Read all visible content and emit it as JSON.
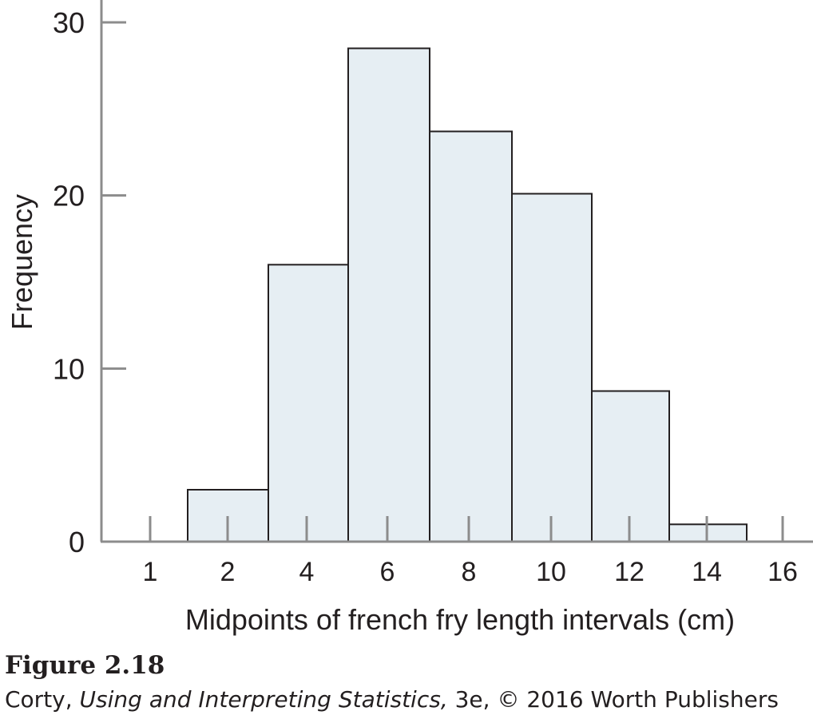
{
  "chart_data": {
    "type": "bar",
    "subtype": "histogram",
    "title": "",
    "xlabel": "Midpoints of french fry length intervals (cm)",
    "ylabel": "Frequency",
    "ylim": [
      0,
      30
    ],
    "yticks": [
      "0",
      "10",
      "20",
      "30"
    ],
    "xtick_labels": [
      "1",
      "2",
      "4",
      "6",
      "8",
      "10",
      "12",
      "14",
      "16"
    ],
    "categories": [
      "2",
      "4",
      "6",
      "8",
      "10",
      "12",
      "14"
    ],
    "values": [
      3,
      16,
      28.5,
      23.7,
      20.1,
      8.7,
      1
    ],
    "grid": false,
    "bar_fill": "#e6eef3",
    "bar_stroke": "#231f20",
    "axis_color": "#8c8c8c"
  },
  "caption": {
    "figure": "Figure 2.18",
    "author": "Corty, ",
    "book": "Using and Interpreting Statistics,",
    "rest": " 3e, © 2016 Worth Publishers"
  }
}
